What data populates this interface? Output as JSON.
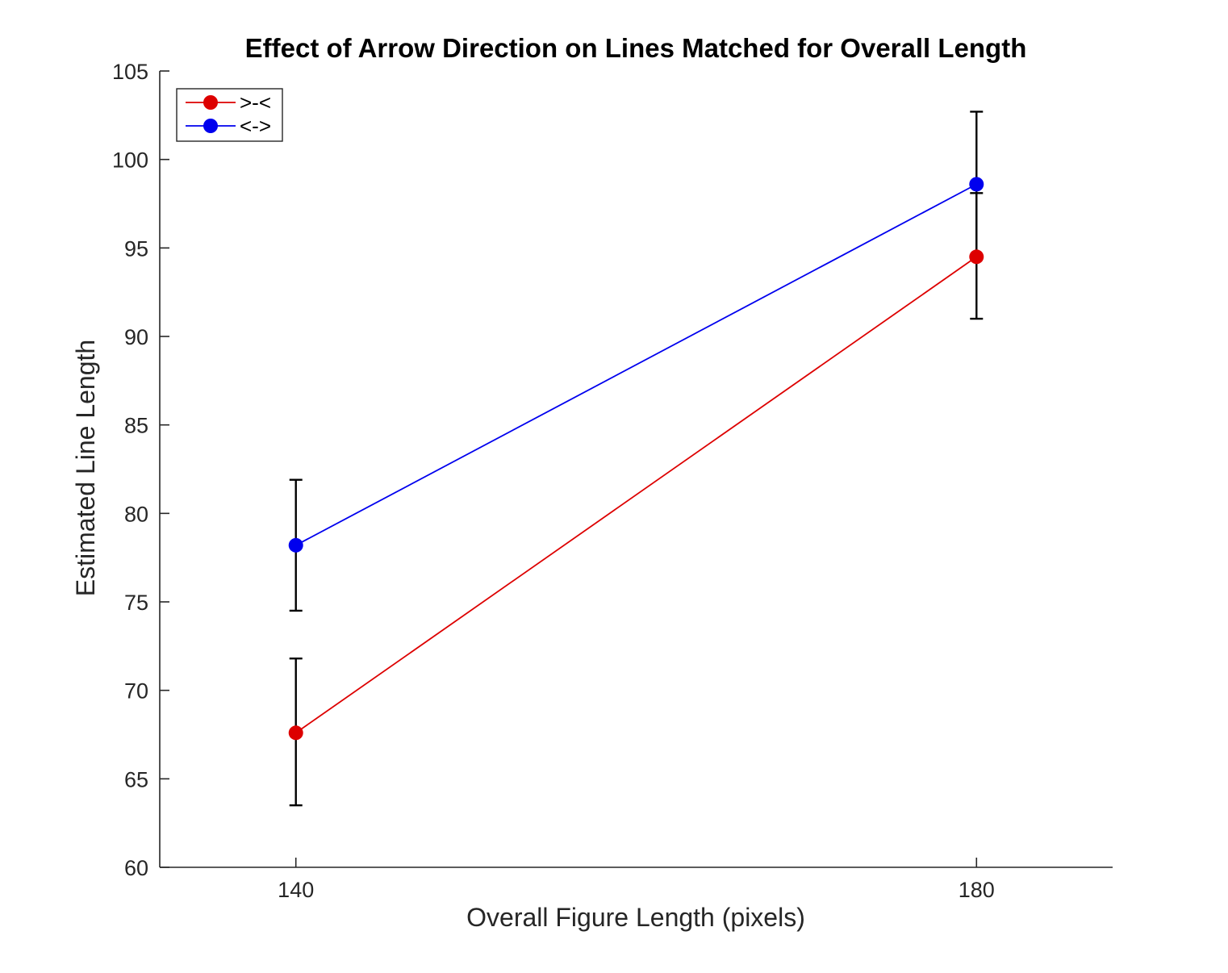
{
  "chart_data": {
    "type": "line",
    "title": "Effect of Arrow Direction on Lines Matched for Overall Length",
    "xlabel": "Overall Figure Length (pixels)",
    "ylabel": "Estimated Line Length",
    "x": [
      140,
      180
    ],
    "x_tick_labels": [
      "140",
      "180"
    ],
    "xlim": [
      132,
      188
    ],
    "ylim": [
      60,
      105
    ],
    "y_ticks": [
      60,
      65,
      70,
      75,
      80,
      85,
      90,
      95,
      100,
      105
    ],
    "y_tick_labels": [
      "60",
      "65",
      "70",
      "75",
      "80",
      "85",
      "90",
      "95",
      "100",
      "105"
    ],
    "grid": false,
    "legend_position": "top-left",
    "series": [
      {
        "name": ">-<",
        "color": "#dd0000",
        "values": [
          67.6,
          94.5
        ],
        "error_lower": [
          63.5,
          91.0
        ],
        "error_upper": [
          71.8,
          98.1
        ]
      },
      {
        "name": "<->",
        "color": "#0000ee",
        "values": [
          78.2,
          98.6
        ],
        "error_lower": [
          74.5,
          94.5
        ],
        "error_upper": [
          81.9,
          102.7
        ]
      }
    ]
  }
}
